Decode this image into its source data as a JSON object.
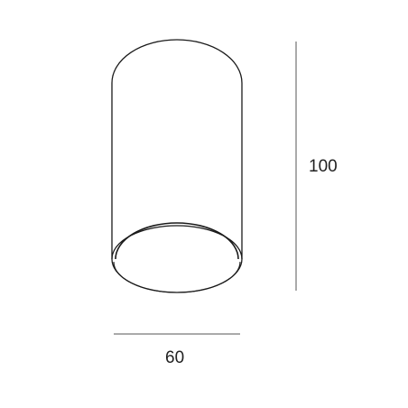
{
  "dimensions": {
    "height_label": "100",
    "width_label": "60"
  },
  "colors": {
    "outline": "#1a1a1a",
    "dimension_line": "#555555",
    "background": "#ffffff"
  }
}
